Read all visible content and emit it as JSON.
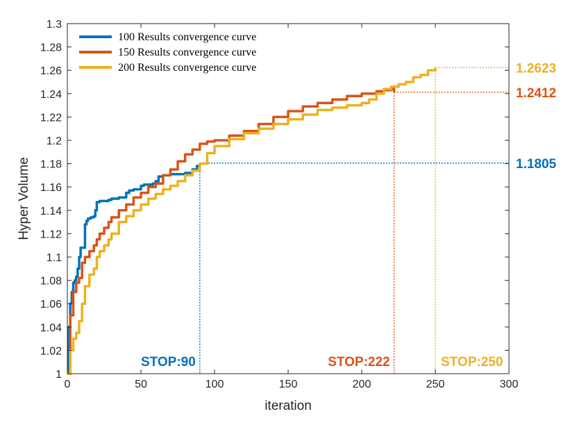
{
  "chart_data": {
    "type": "line",
    "title": "",
    "xlabel": "iteration",
    "ylabel": "Hyper Volume",
    "xlim": [
      0,
      300
    ],
    "ylim": [
      1,
      1.3
    ],
    "xticks": [
      "0",
      "50",
      "100",
      "150",
      "200",
      "250",
      "300"
    ],
    "yticks": [
      "1",
      "1.02",
      "1.04",
      "1.06",
      "1.08",
      "1.1",
      "1.12",
      "1.14",
      "1.16",
      "1.18",
      "1.2",
      "1.22",
      "1.24",
      "1.26",
      "1.28",
      "1.3"
    ],
    "legend_position": "top-left",
    "grid": false,
    "series": [
      {
        "name": "100 Results convergence curve",
        "color": "#0072BD",
        "x": [
          0,
          1,
          2,
          3,
          4,
          5,
          6,
          7,
          8,
          9,
          10,
          11,
          12,
          13,
          14,
          16,
          18,
          19,
          20,
          22,
          25,
          28,
          30,
          35,
          40,
          42,
          45,
          50,
          52,
          55,
          58,
          60,
          62,
          65,
          70,
          75,
          80,
          85,
          88,
          90
        ],
        "y": [
          1.0,
          1.04,
          1.06,
          1.07,
          1.078,
          1.08,
          1.083,
          1.09,
          1.1,
          1.108,
          1.108,
          1.108,
          1.128,
          1.131,
          1.133,
          1.134,
          1.135,
          1.14,
          1.147,
          1.148,
          1.148,
          1.149,
          1.15,
          1.151,
          1.155,
          1.157,
          1.158,
          1.161,
          1.162,
          1.162,
          1.163,
          1.165,
          1.169,
          1.17,
          1.171,
          1.171,
          1.172,
          1.175,
          1.178,
          1.1805
        ]
      },
      {
        "name": "150 Results convergence curve",
        "color": "#D95319",
        "x": [
          0,
          2,
          4,
          6,
          8,
          10,
          12,
          15,
          18,
          20,
          22,
          25,
          28,
          30,
          35,
          40,
          45,
          50,
          55,
          60,
          65,
          70,
          75,
          80,
          85,
          90,
          95,
          100,
          110,
          120,
          130,
          140,
          150,
          160,
          170,
          180,
          190,
          200,
          210,
          215,
          220,
          222
        ],
        "y": [
          1.0,
          1.05,
          1.07,
          1.078,
          1.082,
          1.095,
          1.1,
          1.105,
          1.11,
          1.115,
          1.12,
          1.125,
          1.13,
          1.134,
          1.14,
          1.145,
          1.151,
          1.155,
          1.16,
          1.163,
          1.17,
          1.175,
          1.182,
          1.188,
          1.192,
          1.197,
          1.199,
          1.2,
          1.204,
          1.208,
          1.214,
          1.22,
          1.225,
          1.229,
          1.232,
          1.235,
          1.238,
          1.24,
          1.242,
          1.243,
          1.244,
          1.2412
        ]
      },
      {
        "name": "200 Results convergence curve",
        "color": "#EDB120",
        "x": [
          0,
          2,
          4,
          6,
          8,
          10,
          12,
          15,
          18,
          20,
          22,
          25,
          28,
          30,
          35,
          40,
          45,
          50,
          55,
          60,
          65,
          70,
          75,
          80,
          85,
          90,
          95,
          100,
          110,
          120,
          130,
          140,
          150,
          160,
          170,
          180,
          190,
          200,
          205,
          210,
          215,
          220,
          225,
          230,
          235,
          240,
          245,
          250
        ],
        "y": [
          1.0,
          1.02,
          1.03,
          1.035,
          1.045,
          1.06,
          1.075,
          1.085,
          1.09,
          1.1,
          1.105,
          1.11,
          1.115,
          1.12,
          1.13,
          1.135,
          1.14,
          1.145,
          1.15,
          1.154,
          1.158,
          1.161,
          1.165,
          1.17,
          1.174,
          1.18,
          1.189,
          1.195,
          1.201,
          1.206,
          1.21,
          1.214,
          1.218,
          1.222,
          1.226,
          1.228,
          1.23,
          1.232,
          1.235,
          1.24,
          1.244,
          1.246,
          1.248,
          1.25,
          1.254,
          1.256,
          1.26,
          1.2623
        ]
      }
    ],
    "annotations": [
      {
        "label": "1.1805",
        "stop_label": "STOP:90",
        "x": 90,
        "y": 1.1805,
        "color": "#0072BD"
      },
      {
        "label": "1.2412",
        "stop_label": "STOP:222",
        "x": 222,
        "y": 1.2412,
        "color": "#D95319"
      },
      {
        "label": "1.2623",
        "stop_label": "STOP:250",
        "x": 250,
        "y": 1.2623,
        "color": "#EDB120"
      }
    ]
  }
}
